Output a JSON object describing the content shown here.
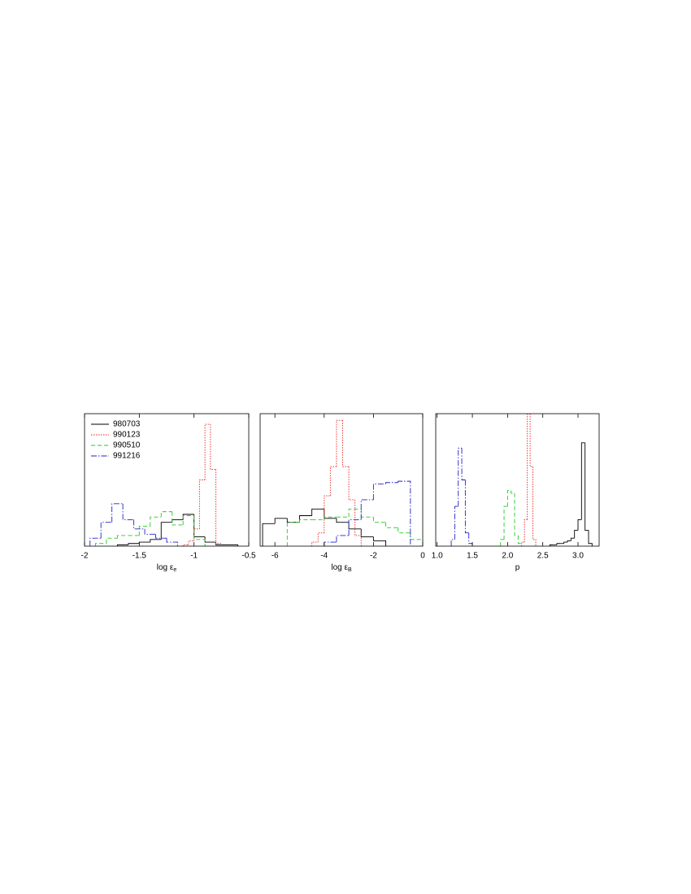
{
  "chart_data": [
    {
      "type": "histogram",
      "xlabel": "log ε",
      "xlabel_subscript": "e",
      "xlim": [
        -2,
        -0.5
      ],
      "ylim": [
        0,
        100
      ],
      "xticks": [
        -2,
        -1.5,
        -1,
        -0.5
      ],
      "legend": "upper left",
      "series": [
        {
          "name": "980703",
          "color": "#000000",
          "dash": "solid",
          "bins": [
            -1.7,
            -1.6,
            -1.5,
            -1.4,
            -1.3,
            -1.2,
            -1.1,
            -1.0,
            -0.9,
            -0.8,
            -0.7,
            -0.6
          ],
          "values": [
            1,
            2,
            3,
            5,
            18,
            20,
            24,
            7,
            3,
            1,
            1
          ]
        },
        {
          "name": "990123",
          "color": "#ee2222",
          "dash": "dotted",
          "bins": [
            -1.1,
            -1.05,
            -1.0,
            -0.95,
            -0.9,
            -0.85,
            -0.8,
            -0.75
          ],
          "values": [
            1,
            4,
            13,
            50,
            92,
            58,
            2
          ]
        },
        {
          "name": "990510",
          "color": "#22cc22",
          "dash": "dashed",
          "bins": [
            -1.9,
            -1.8,
            -1.7,
            -1.6,
            -1.5,
            -1.4,
            -1.3,
            -1.2,
            -1.1,
            -1.0,
            -0.9
          ],
          "values": [
            2,
            6,
            8,
            8,
            15,
            22,
            26,
            16,
            23,
            5
          ]
        },
        {
          "name": "991216",
          "color": "#2222cc",
          "dash": "dashdot",
          "bins": [
            -1.95,
            -1.85,
            -1.75,
            -1.65,
            -1.55,
            -1.45,
            -1.35,
            -1.25,
            -1.15
          ],
          "values": [
            6,
            18,
            32,
            20,
            13,
            9,
            6,
            3
          ]
        }
      ]
    },
    {
      "type": "histogram",
      "xlabel": "log ε",
      "xlabel_subscript": "B",
      "xlim": [
        -6.6,
        0
      ],
      "ylim": [
        0,
        100
      ],
      "xticks": [
        -6,
        -4,
        -2,
        0
      ],
      "series": [
        {
          "color": "#000000",
          "dash": "solid",
          "bins": [
            -6.5,
            -6,
            -5.5,
            -5,
            -4.5,
            -4,
            -3.5,
            -3,
            -2.5,
            -2,
            -1.5
          ],
          "values": [
            17,
            21,
            18,
            23,
            28,
            21,
            18,
            13,
            7,
            4
          ]
        },
        {
          "color": "#ee2222",
          "dash": "dotted",
          "bins": [
            -4.5,
            -4.25,
            -4,
            -3.75,
            -3.5,
            -3.25,
            -3,
            -2.75,
            -2.5
          ],
          "values": [
            3,
            10,
            38,
            60,
            95,
            60,
            35,
            8
          ]
        },
        {
          "color": "#22cc22",
          "dash": "dashed",
          "bins": [
            -5.5,
            -5,
            -4.5,
            -4,
            -3.5,
            -3,
            -2.5,
            -2,
            -1.5,
            -1,
            -0.5,
            0
          ],
          "values": [
            18,
            20,
            20,
            22,
            22,
            28,
            22,
            18,
            14,
            10,
            5
          ]
        },
        {
          "color": "#2222cc",
          "dash": "dashdot",
          "bins": [
            -4,
            -3.5,
            -3,
            -2.5,
            -2,
            -1.5,
            -1,
            -0.5
          ],
          "values": [
            3,
            8,
            20,
            35,
            47,
            48,
            49
          ]
        }
      ]
    },
    {
      "type": "histogram",
      "xlabel": "p",
      "xlim": [
        0.98,
        3.3
      ],
      "ylim": [
        0,
        100
      ],
      "xticks": [
        {
          "value": 1,
          "label": "1.0"
        },
        1.5,
        {
          "value": 2,
          "label": "2.0"
        },
        2.5,
        {
          "value": 3,
          "label": "3.0"
        }
      ],
      "series": [
        {
          "color": "#000000",
          "dash": "solid",
          "bins": [
            2.6,
            2.65,
            2.7,
            2.75,
            2.8,
            2.85,
            2.9,
            2.95,
            3.0,
            3.05,
            3.1,
            3.15,
            3.2
          ],
          "values": [
            1,
            1,
            2,
            2,
            3,
            4,
            6,
            12,
            20,
            78,
            12,
            2
          ]
        },
        {
          "color": "#ee2222",
          "dash": "dotted",
          "bins": [
            2.2,
            2.24,
            2.28,
            2.32,
            2.36,
            2.4
          ],
          "values": [
            3,
            20,
            100,
            60,
            5
          ]
        },
        {
          "color": "#22cc22",
          "dash": "dashed",
          "bins": [
            1.9,
            1.95,
            2.0,
            2.05,
            2.1,
            2.15,
            2.2
          ],
          "values": [
            5,
            30,
            42,
            40,
            8,
            2
          ]
        },
        {
          "color": "#2222cc",
          "dash": "dashdot",
          "bins": [
            1.2,
            1.25,
            1.3,
            1.35,
            1.4,
            1.45,
            1.5
          ],
          "values": [
            5,
            30,
            74,
            50,
            10,
            2
          ]
        }
      ]
    }
  ]
}
